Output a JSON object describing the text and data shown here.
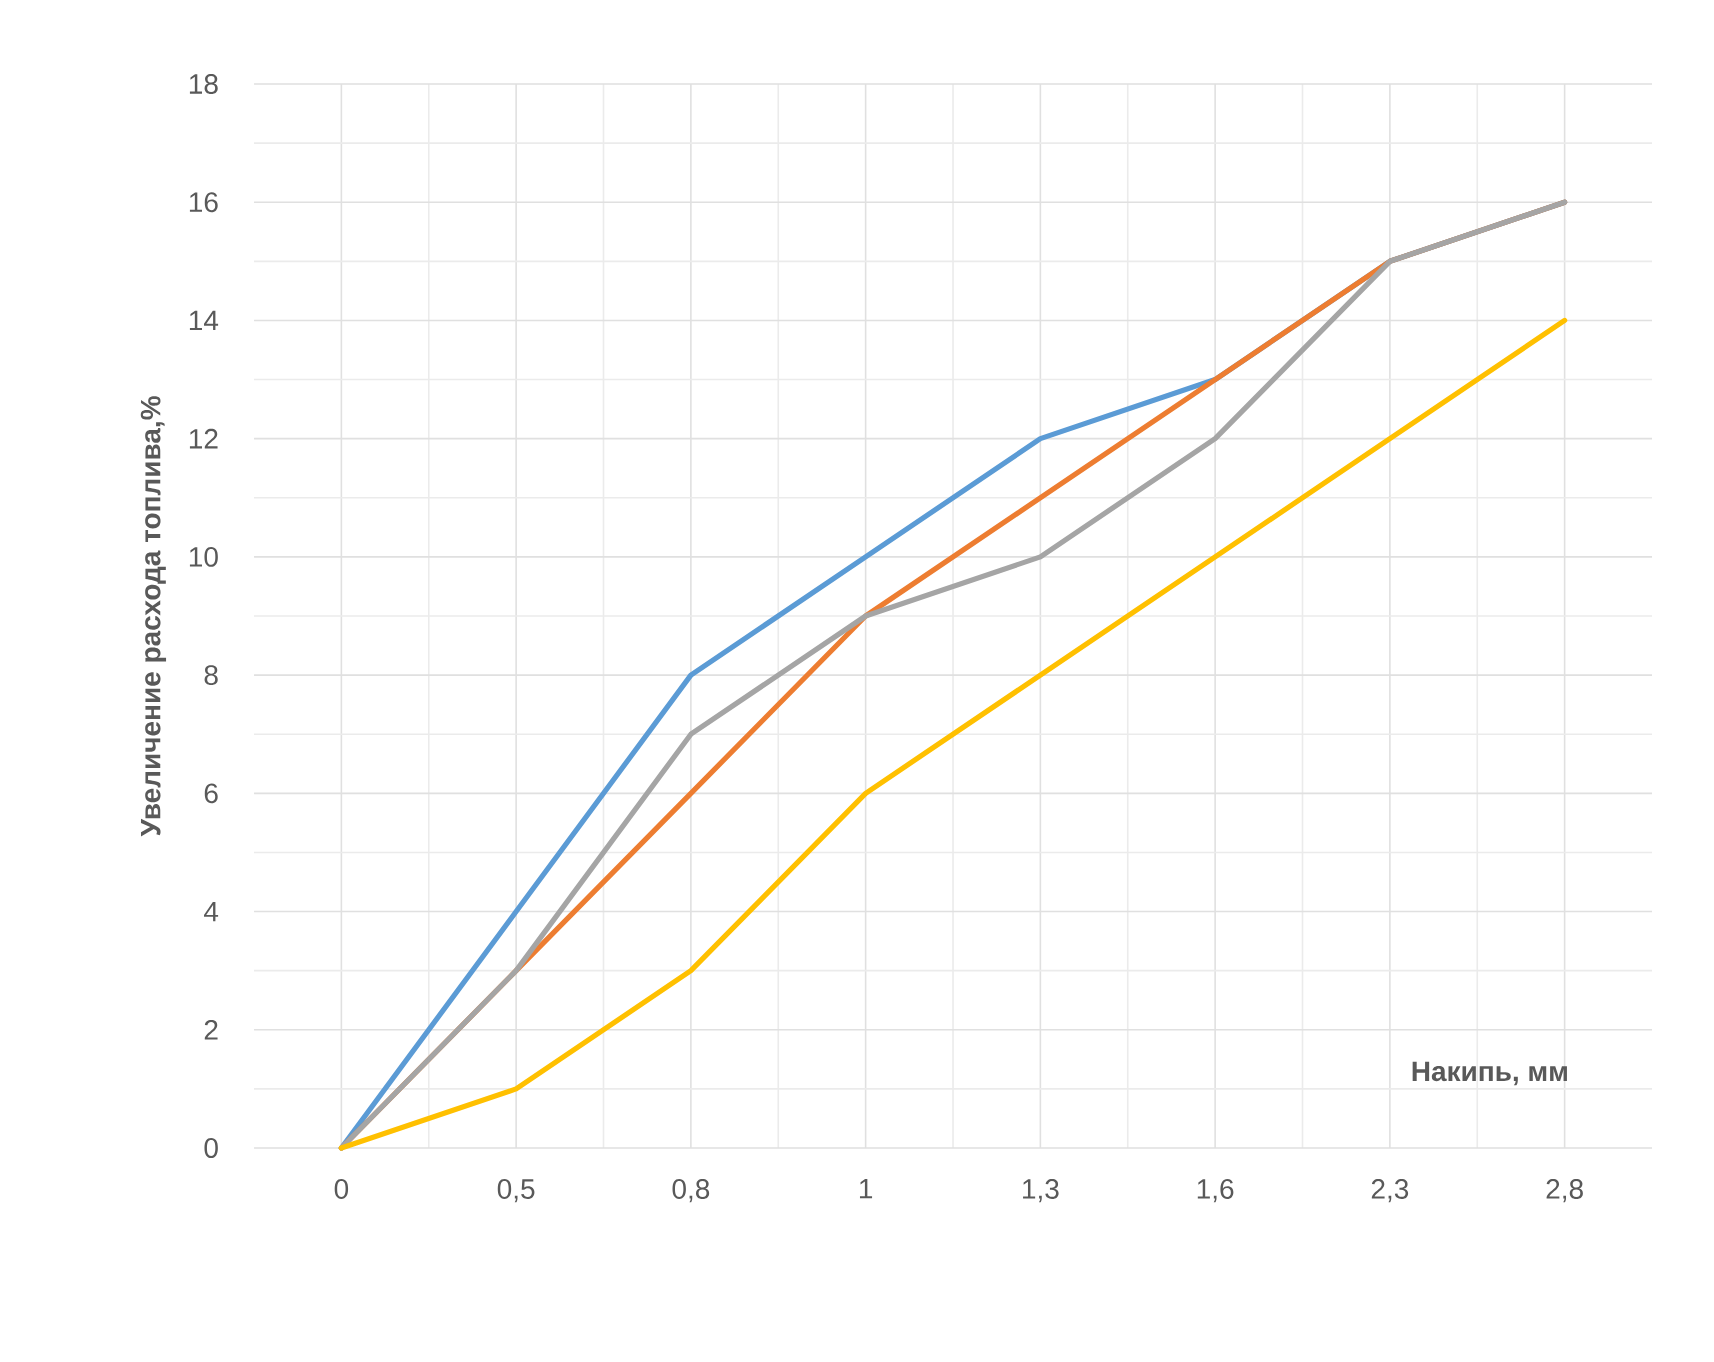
{
  "chart_data": {
    "type": "line",
    "xlabel": "Накипь, мм",
    "ylabel": "Увеличение расхода топлива,%",
    "categories": [
      "0",
      "0,5",
      "0,8",
      "1",
      "1,3",
      "1,6",
      "2,3",
      "2,8"
    ],
    "series": [
      {
        "color": "#5b9bd5",
        "values": [
          0,
          4,
          8,
          10,
          12,
          13,
          15,
          16
        ]
      },
      {
        "color": "#ed7d31",
        "values": [
          0,
          3,
          6,
          9,
          11,
          13,
          15,
          16
        ]
      },
      {
        "color": "#a5a5a5",
        "values": [
          0,
          3,
          7,
          9,
          10,
          12,
          15,
          16
        ]
      },
      {
        "color": "#ffc000",
        "values": [
          0,
          1,
          3,
          6,
          8,
          10,
          12,
          14
        ]
      }
    ],
    "ylim": [
      0,
      18
    ],
    "yticks": [
      0,
      2,
      4,
      6,
      8,
      10,
      12,
      14,
      16,
      18
    ],
    "grid": true
  }
}
